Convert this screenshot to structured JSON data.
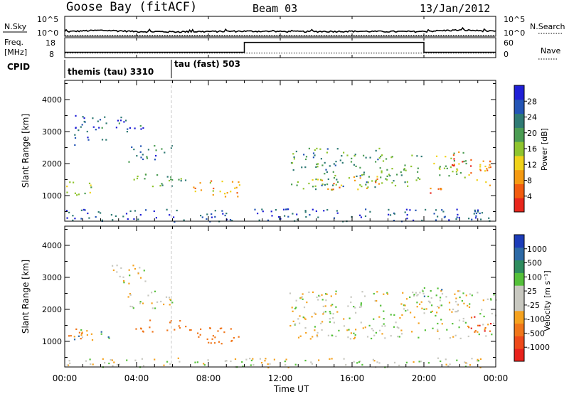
{
  "header": {
    "station": "Goose Bay (fitACF)",
    "beam": "Beam 03",
    "date": "13/Jan/2012"
  },
  "strips": {
    "nsky": {
      "left_label": "N.Sky",
      "right_label": "N.Search",
      "left_ticks": [
        "10^5",
        "10^0"
      ],
      "right_ticks": [
        "10^5",
        "10^0"
      ]
    },
    "freq": {
      "left_label_1": "Freq.",
      "left_label_2": "[MHz]",
      "left_ticks": [
        "18",
        "8"
      ],
      "right_label": "Nave",
      "right_ticks": [
        "60",
        "0"
      ]
    },
    "cpid": {
      "label": "CPID",
      "segments": [
        "themis (tau) 3310",
        "tau (fast) 503"
      ]
    }
  },
  "panels": {
    "power": {
      "ylabel": "Slant Range [km]",
      "yticks": [
        "4000",
        "3000",
        "2000",
        "1000"
      ],
      "colorbar_label": "Power [dB]",
      "colorbar_ticks": [
        "28",
        "24",
        "20",
        "16",
        "12",
        "8",
        "4"
      ],
      "colors": [
        "#1f1fd6",
        "#2455b5",
        "#2f7a74",
        "#4b9c53",
        "#8fc42e",
        "#f0d21a",
        "#f59a12",
        "#f25c0f",
        "#e8261c"
      ]
    },
    "velocity": {
      "ylabel": "Slant Range [km]",
      "yticks": [
        "4000",
        "3000",
        "2000",
        "1000"
      ],
      "colorbar_label": "Velocity [m s⁻¹]",
      "colorbar_ticks": [
        "1000",
        "500",
        "100",
        "25",
        "-25",
        "-100",
        "-500",
        "-1000"
      ],
      "colors": [
        "#1c3cb8",
        "#2d6aa6",
        "#2e8c5e",
        "#55c03a",
        "#c8c8c0",
        "#c8c8c0",
        "#f5a21f",
        "#f0761a",
        "#ee4a1a",
        "#e8221c"
      ]
    }
  },
  "xaxis": {
    "label": "Time UT",
    "ticks": [
      "00:00",
      "04:00",
      "08:00",
      "12:00",
      "16:00",
      "20:00",
      "00:00"
    ]
  },
  "chart_data": [
    {
      "type": "line",
      "title": "N.Sky / N.Search",
      "xlabel": "Time UT",
      "x_hours": [
        0,
        2,
        4,
        6,
        8,
        10,
        12,
        14,
        16,
        18,
        20,
        22,
        24
      ],
      "series": [
        {
          "name": "N.Sky",
          "values": [
            10,
            25,
            12,
            10,
            12,
            15,
            12,
            12,
            14,
            12,
            12,
            30,
            12
          ]
        },
        {
          "name": "N.Search",
          "values": [
            1,
            1,
            1,
            1,
            1,
            1,
            1,
            1,
            1,
            1,
            1,
            1,
            1
          ]
        }
      ],
      "ylim": [
        1,
        100000
      ],
      "yscale": "log"
    },
    {
      "type": "line",
      "title": "Freq. [MHz] / Nave",
      "xlabel": "Time UT",
      "series": [
        {
          "name": "Freq.",
          "x_hours": [
            0,
            24
          ],
          "values": [
            10,
            10
          ]
        },
        {
          "name": "Nave",
          "x_hours": [
            0,
            10,
            10,
            20,
            20,
            24
          ],
          "values": [
            15,
            15,
            53,
            53,
            15,
            15
          ]
        }
      ],
      "ylim_freq": [
        8,
        18
      ],
      "ylim_nave": [
        0,
        60
      ]
    },
    {
      "type": "table",
      "title": "CPID",
      "columns": [
        "mode",
        "start_hour"
      ],
      "rows": [
        [
          "themis (tau) 3310",
          0
        ],
        [
          "tau (fast) 503",
          6
        ]
      ]
    },
    {
      "type": "heatmap",
      "title": "Power [dB]",
      "xlabel": "Time UT",
      "ylabel": "Slant Range [km]",
      "xlim": [
        0,
        24
      ],
      "ylim": [
        200,
        4600
      ],
      "zlim": [
        0,
        30
      ],
      "regions": [
        {
          "t": [
            0.0,
            1.5
          ],
          "r": [
            1000,
            1450
          ],
          "value": 14
        },
        {
          "t": [
            0.5,
            2.5
          ],
          "r": [
            2600,
            3600
          ],
          "value": 6
        },
        {
          "t": [
            2.5,
            4.5
          ],
          "r": [
            3000,
            3500
          ],
          "value": 6
        },
        {
          "t": [
            3.5,
            6.0
          ],
          "r": [
            2050,
            2600
          ],
          "value": 8
        },
        {
          "t": [
            3.8,
            7.0
          ],
          "r": [
            1300,
            1700
          ],
          "value": 12
        },
        {
          "t": [
            7.0,
            9.8
          ],
          "r": [
            950,
            1500
          ],
          "value": 21
        },
        {
          "t": [
            12.5,
            18.0
          ],
          "r": [
            1200,
            2500
          ],
          "value": 11
        },
        {
          "t": [
            13.5,
            17.5
          ],
          "r": [
            1200,
            1650
          ],
          "value": 20
        },
        {
          "t": [
            17.5,
            20.0
          ],
          "r": [
            1300,
            2300
          ],
          "value": 12
        },
        {
          "t": [
            20.0,
            21.0
          ],
          "r": [
            900,
            1300
          ],
          "value": 26
        },
        {
          "t": [
            20.5,
            22.5
          ],
          "r": [
            1400,
            2400
          ],
          "value": 15
        },
        {
          "t": [
            21.5,
            22.8
          ],
          "r": [
            1900,
            2400
          ],
          "value": 26
        },
        {
          "t": [
            22.5,
            24.0
          ],
          "r": [
            1300,
            2100
          ],
          "value": 22
        },
        {
          "t": [
            0.0,
            24.0
          ],
          "r": [
            200,
            600
          ],
          "value": 5
        }
      ]
    },
    {
      "type": "heatmap",
      "title": "Velocity [m s⁻¹]",
      "xlabel": "Time UT",
      "ylabel": "Slant Range [km]",
      "xlim": [
        0,
        24
      ],
      "ylim": [
        200,
        4600
      ],
      "zlim": [
        -1000,
        1000
      ],
      "regions": [
        {
          "t": [
            0.0,
            1.5
          ],
          "r": [
            1000,
            1450
          ],
          "value": -100
        },
        {
          "t": [
            0.5,
            1.4
          ],
          "r": [
            1050,
            1400
          ],
          "value": 60
        },
        {
          "t": [
            2.0,
            2.7
          ],
          "r": [
            1100,
            1450
          ],
          "value": 100
        },
        {
          "t": [
            2.5,
            4.5
          ],
          "r": [
            2800,
            3400
          ],
          "value": 0
        },
        {
          "t": [
            3.5,
            6.0
          ],
          "r": [
            2050,
            2600
          ],
          "value": 0
        },
        {
          "t": [
            3.8,
            7.0
          ],
          "r": [
            1300,
            1700
          ],
          "value": -150
        },
        {
          "t": [
            7.0,
            9.8
          ],
          "r": [
            950,
            1500
          ],
          "value": -200
        },
        {
          "t": [
            12.5,
            24.0
          ],
          "r": [
            1100,
            2600
          ],
          "value": 0
        },
        {
          "t": [
            19.5,
            21.5
          ],
          "r": [
            2100,
            2700
          ],
          "value": 50
        },
        {
          "t": [
            22.3,
            24.0
          ],
          "r": [
            1300,
            1800
          ],
          "value": -500
        },
        {
          "t": [
            0.0,
            24.0
          ],
          "r": [
            200,
            500
          ],
          "value": 0
        }
      ]
    }
  ]
}
